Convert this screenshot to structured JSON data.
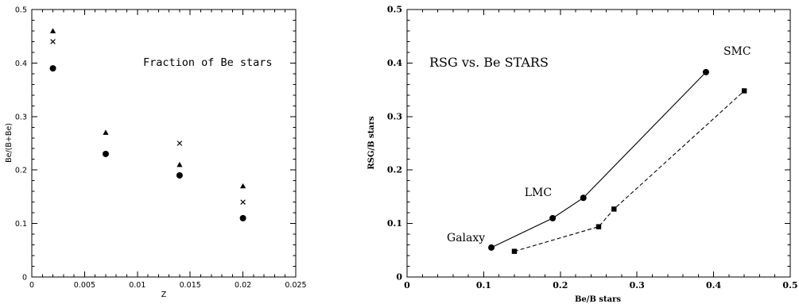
{
  "chart_data": [
    {
      "type": "scatter",
      "xlabel": "Z",
      "ylabel": "Be/(B+Be)",
      "xlim": [
        0,
        0.025
      ],
      "ylim": [
        0,
        0.5
      ],
      "x_ticks": [
        "0",
        "0.005",
        "0.01",
        "0.015",
        "0.02",
        "0.025"
      ],
      "y_ticks": [
        "0",
        "0.1",
        "0.2",
        "0.3",
        "0.4",
        "0.5"
      ],
      "annotation": "Fraction of Be stars",
      "grid": false,
      "series": [
        {
          "marker": "triangle",
          "x": [
            0.002,
            0.007,
            0.014,
            0.02
          ],
          "y": [
            0.46,
            0.27,
            0.21,
            0.17
          ]
        },
        {
          "marker": "cross",
          "x": [
            0.002,
            0.014,
            0.02
          ],
          "y": [
            0.44,
            0.25,
            0.14
          ]
        },
        {
          "marker": "circle",
          "x": [
            0.002,
            0.007,
            0.014,
            0.02
          ],
          "y": [
            0.39,
            0.23,
            0.19,
            0.11
          ]
        }
      ]
    },
    {
      "type": "line",
      "xlabel": "Be/B stars",
      "ylabel": "RSG/B stars",
      "xlim": [
        0,
        0.5
      ],
      "ylim": [
        0,
        0.5
      ],
      "x_ticks": [
        "0",
        "0.1",
        "0.2",
        "0.3",
        "0.4",
        "0.5"
      ],
      "y_ticks": [
        "0",
        "0.1",
        "0.2",
        "0.3",
        "0.4",
        "0.5"
      ],
      "title": "RSG vs. Be STARS",
      "grid": false,
      "series": [
        {
          "style": "solid",
          "marker": "circle",
          "x": [
            0.11,
            0.19,
            0.23,
            0.39
          ],
          "y": [
            0.055,
            0.11,
            0.148,
            0.383
          ]
        },
        {
          "style": "dashed",
          "marker": "square",
          "x": [
            0.14,
            0.25,
            0.27,
            0.44
          ],
          "y": [
            0.048,
            0.094,
            0.127,
            0.348
          ]
        }
      ],
      "point_labels": [
        {
          "text": "Galaxy",
          "series": 0,
          "index": 0
        },
        {
          "text": "LMC",
          "series": 0,
          "index": 2
        },
        {
          "text": "SMC",
          "series": 0,
          "index": 3
        }
      ]
    }
  ]
}
